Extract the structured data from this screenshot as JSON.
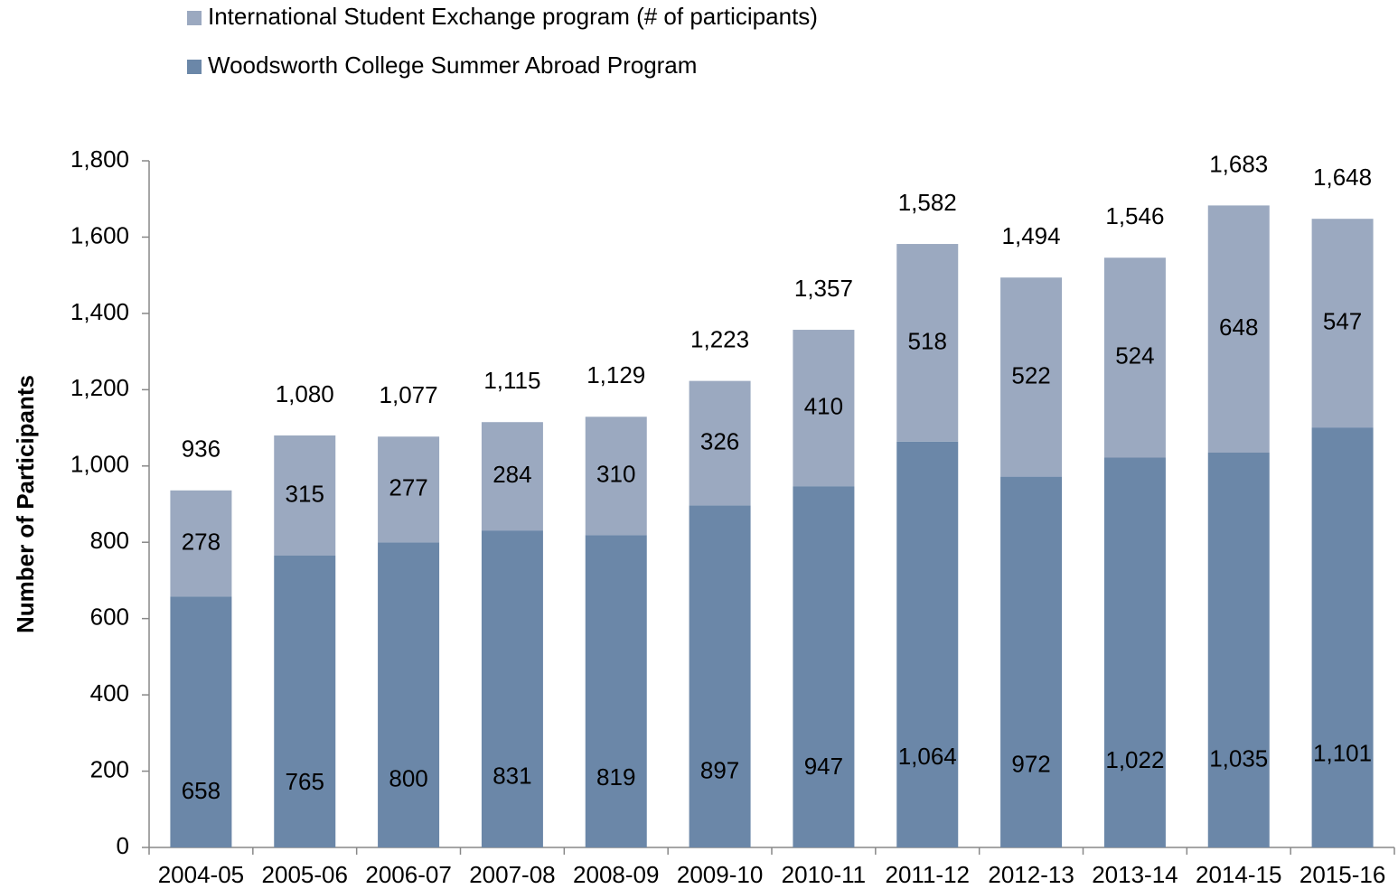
{
  "chart_data": {
    "type": "stacked_bar",
    "y_label": "Number of Participants",
    "categories": [
      "2004-05",
      "2005-06",
      "2006-07",
      "2007-08",
      "2008-09",
      "2009-10",
      "2010-11",
      "2011-12",
      "2012-13",
      "2013-14",
      "2014-15",
      "2015-16"
    ],
    "series": [
      {
        "name": "Woodsworth College Summer Abroad Program",
        "color": "#6b87a8",
        "values": [
          658,
          765,
          800,
          831,
          819,
          897,
          947,
          1064,
          972,
          1022,
          1035,
          1101
        ],
        "value_labels": [
          "658",
          "765",
          "800",
          "831",
          "819",
          "897",
          "947",
          "1,064",
          "972",
          "1,022",
          "1,035",
          "1,101"
        ]
      },
      {
        "name": "International Student Exchange program (# of participants)",
        "color": "#9ba9c0",
        "values": [
          278,
          315,
          277,
          284,
          310,
          326,
          410,
          518,
          522,
          524,
          648,
          547
        ]
      }
    ],
    "totals": [
      936,
      1080,
      1077,
      1115,
      1129,
      1223,
      1357,
      1582,
      1494,
      1546,
      1683,
      1648
    ],
    "total_labels": [
      "936",
      "1,080",
      "1,077",
      "1,115",
      "1,129",
      "1,223",
      "1,357",
      "1,582",
      "1,494",
      "1,546",
      "1,683",
      "1,648"
    ],
    "ylim": [
      0,
      1800
    ],
    "yticks": [
      0,
      200,
      400,
      600,
      800,
      {
        "value": 1000,
        "label": "1,000"
      },
      {
        "value": 1200,
        "label": "1,200"
      },
      {
        "value": 1400,
        "label": "1,400"
      },
      {
        "value": 1600,
        "label": "1,600"
      },
      {
        "value": 1800,
        "label": "1,800"
      }
    ]
  }
}
